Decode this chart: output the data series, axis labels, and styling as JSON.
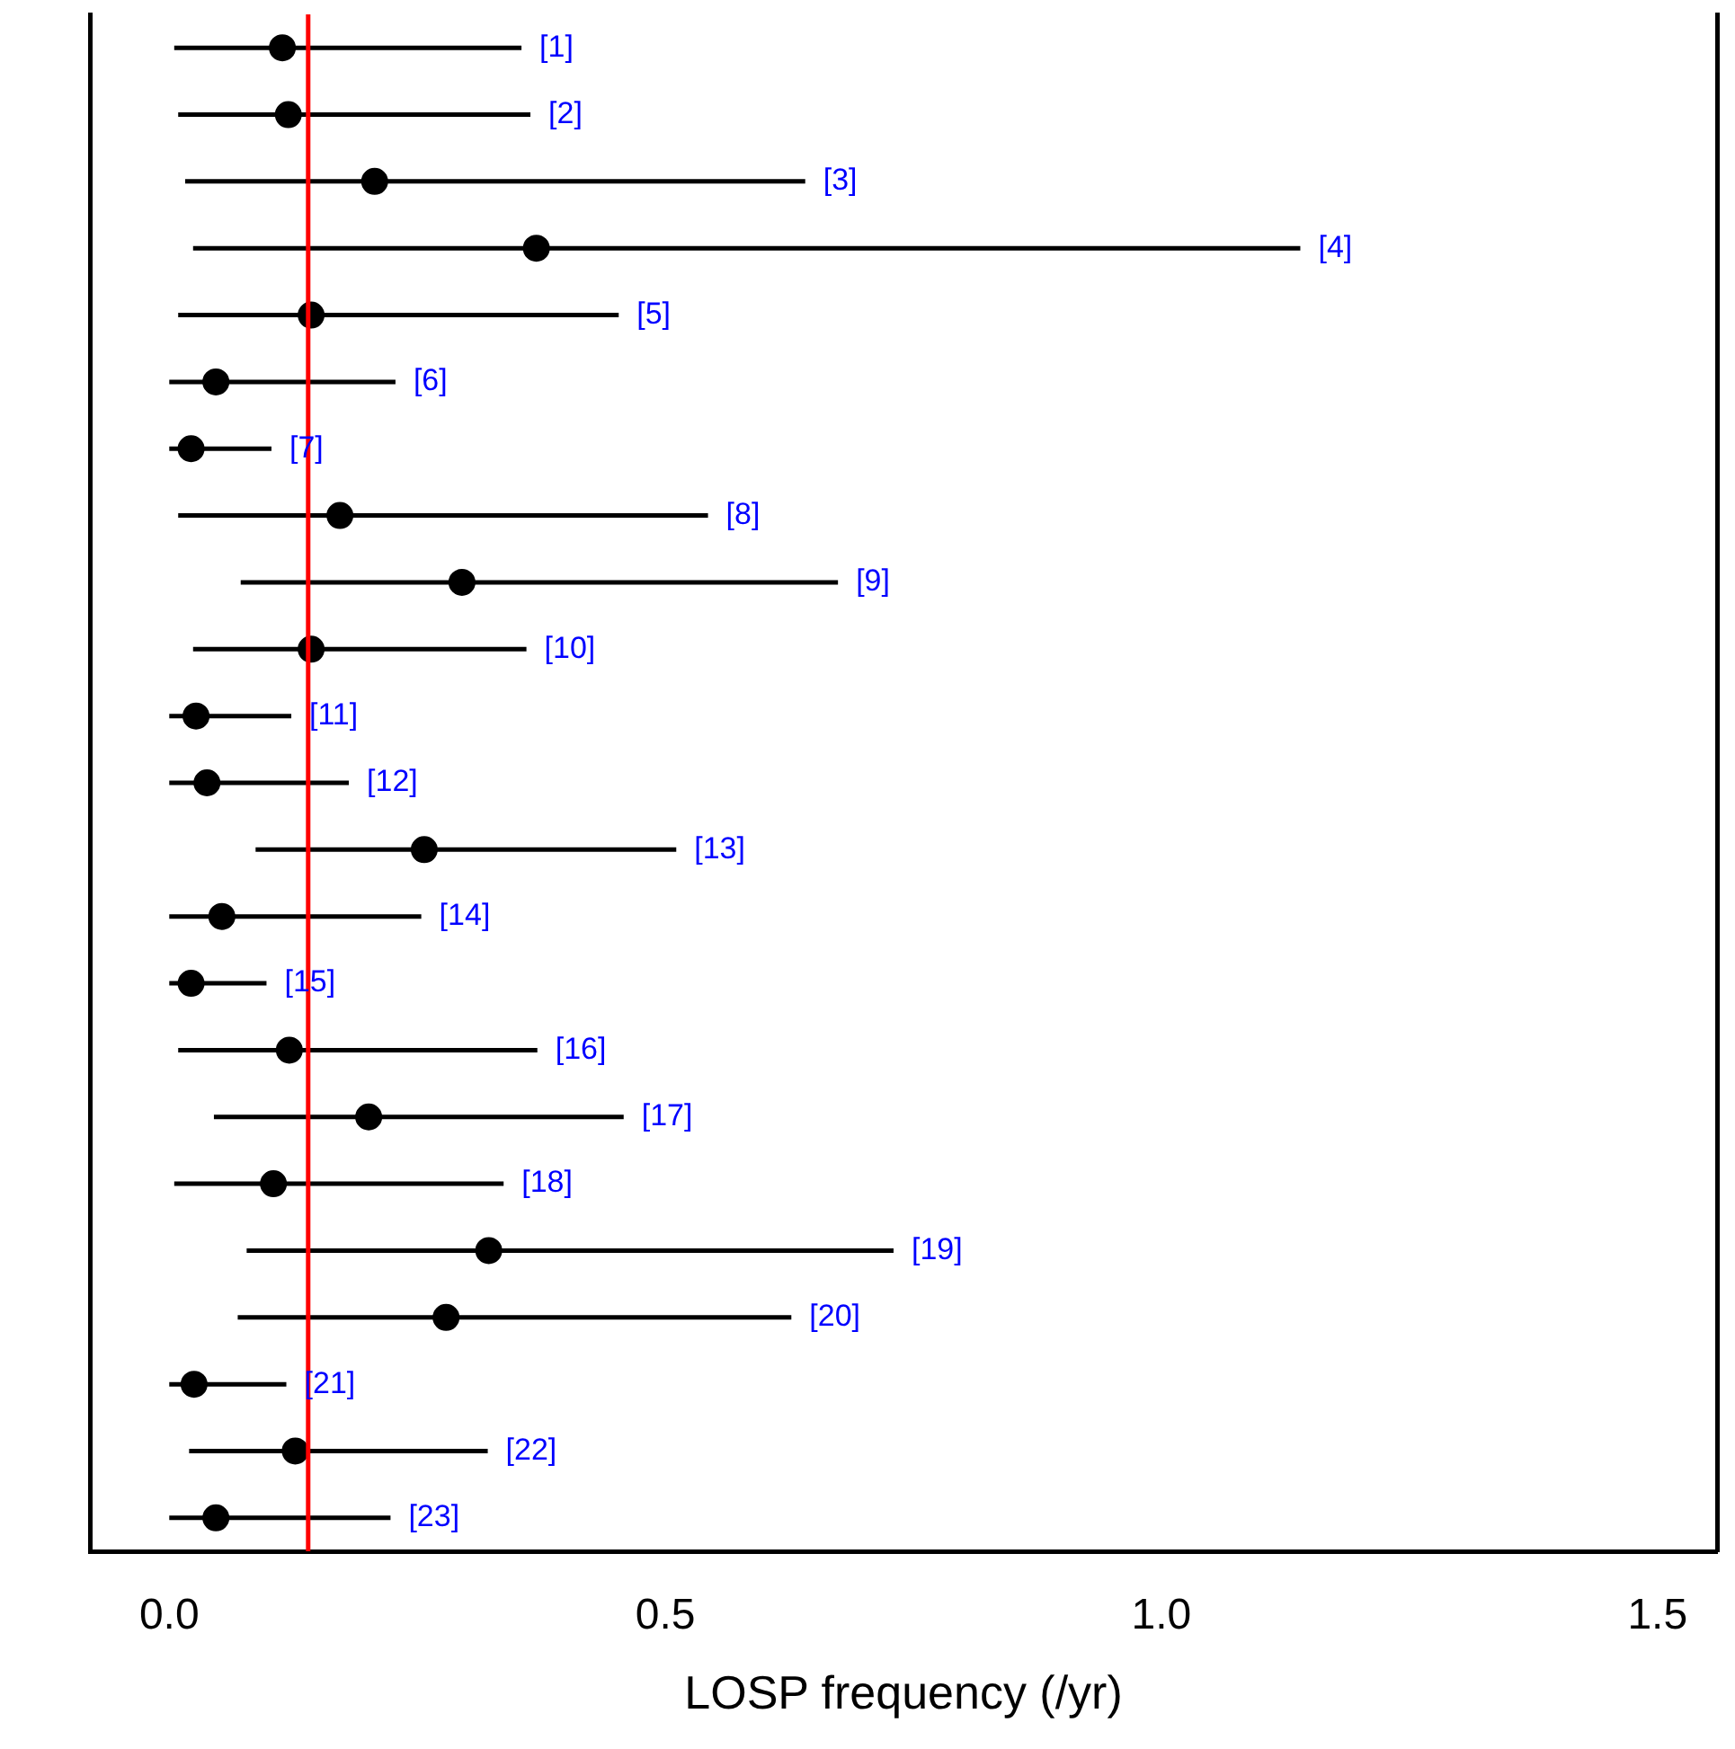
{
  "chart_data": {
    "type": "scatter",
    "orientation": "horizontal",
    "xlabel": "LOSP frequency (/yr)",
    "categories": [
      null,
      null,
      null,
      null,
      null,
      null,
      null,
      null,
      null,
      null,
      null,
      null,
      null,
      null,
      null,
      null,
      null,
      null,
      null,
      null,
      null,
      null,
      null
    ],
    "values": [
      0.114,
      0.12,
      0.207,
      0.37,
      0.143,
      0.047,
      0.022,
      0.172,
      0.295,
      0.143,
      0.027,
      0.038,
      0.257,
      0.053,
      0.022,
      0.121,
      0.201,
      0.105,
      0.322,
      0.279,
      0.025,
      0.127,
      0.047
    ],
    "errors": [
      [
        0.005,
        0.355
      ],
      [
        0.009,
        0.364
      ],
      [
        0.016,
        0.641
      ],
      [
        0.024,
        1.14
      ],
      [
        0.009,
        0.453
      ],
      [
        0,
        0.228
      ],
      [
        0,
        0.103
      ],
      [
        0.009,
        0.543
      ],
      [
        0.072,
        0.674
      ],
      [
        0.024,
        0.36
      ],
      [
        0,
        0.123
      ],
      [
        0,
        0.181
      ],
      [
        0.087,
        0.511
      ],
      [
        0,
        0.254
      ],
      [
        0,
        0.098
      ],
      [
        0.009,
        0.371
      ],
      [
        0.045,
        0.458
      ],
      [
        0.005,
        0.337
      ],
      [
        0.078,
        0.73
      ],
      [
        0.069,
        0.627
      ],
      [
        0,
        0.118
      ],
      [
        0.02,
        0.321
      ],
      [
        0,
        0.223
      ]
    ],
    "annotations": [
      {
        "text": "[1]",
        "x": 0.355
      },
      {
        "text": "[2]",
        "x": 0.364
      },
      {
        "text": "[3]",
        "x": 0.641
      },
      {
        "text": "[4]",
        "x": 1.14
      },
      {
        "text": "[5]",
        "x": 0.453
      },
      {
        "text": "[6]",
        "x": 0.228
      },
      {
        "text": "[7]",
        "x": 0.103
      },
      {
        "text": "[8]",
        "x": 0.543
      },
      {
        "text": "[9]",
        "x": 0.674
      },
      {
        "text": "[10]",
        "x": 0.36
      },
      {
        "text": "[11]",
        "x": 0.123
      },
      {
        "text": "[12]",
        "x": 0.181
      },
      {
        "text": "[13]",
        "x": 0.511
      },
      {
        "text": "[14]",
        "x": 0.254
      },
      {
        "text": "[15]",
        "x": 0.098
      },
      {
        "text": "[16]",
        "x": 0.371
      },
      {
        "text": "[17]",
        "x": 0.458
      },
      {
        "text": "[18]",
        "x": 0.337
      },
      {
        "text": "[19]",
        "x": 0.73
      },
      {
        "text": "[20]",
        "x": 0.627
      },
      {
        "text": "[21]",
        "x": 0.118
      },
      {
        "text": "[22]",
        "x": 0.321
      },
      {
        "text": "[23]",
        "x": 0.223
      }
    ],
    "color": "#000000",
    "marker": "circle",
    "grid": false,
    "tick_labels": "x",
    "ref_lines": [
      {
        "axis": "x",
        "value": 0.14,
        "color": "#ff0000"
      }
    ],
    "xlim": [
      -0.08,
      1.56
    ],
    "xticks": [
      {
        "value": 0,
        "label": "0.0"
      },
      {
        "value": 0.5,
        "label": "0.5"
      },
      {
        "value": 1,
        "label": "1.0"
      },
      {
        "value": 1.5,
        "label": "1.5"
      }
    ]
  }
}
